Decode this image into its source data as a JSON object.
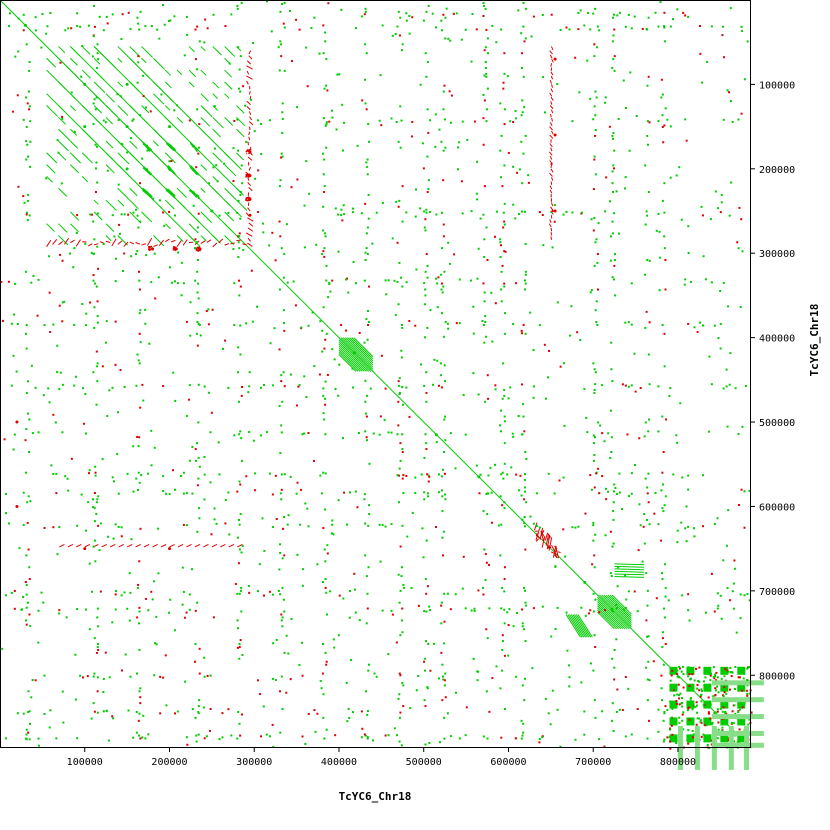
{
  "chart_data": {
    "type": "scatter",
    "plot_kind": "dot plot (self-alignment)",
    "xlabel": "TcYC6_Chr18",
    "ylabel": "TcYC6_Chr18",
    "xlim": [
      0,
      885000
    ],
    "ylim": [
      0,
      885000
    ],
    "y_inverted": true,
    "x_ticks": [
      100000,
      200000,
      300000,
      400000,
      500000,
      600000,
      700000,
      800000
    ],
    "x_tick_labels": [
      "100000",
      "200000",
      "300000",
      "400000",
      "500000",
      "600000",
      "700000",
      "800000"
    ],
    "y_ticks": [
      100000,
      200000,
      300000,
      400000,
      500000,
      600000,
      700000,
      800000
    ],
    "y_tick_labels": [
      "100000",
      "200000",
      "300000",
      "400000",
      "500000",
      "600000",
      "700000",
      "800000"
    ],
    "grid": false,
    "colors": {
      "forward": "#00cc00",
      "reverse": "#dd0000",
      "frame": "#000000"
    },
    "main_diagonal": [
      [
        0,
        0
      ],
      [
        885000,
        885000
      ]
    ],
    "series": [
      {
        "name": "",
        "color": "#00cc00",
        "points": [
          [
            30000,
            30000
          ],
          [
            100000,
            100000
          ],
          [
            150000,
            150000
          ],
          [
            200000,
            200000
          ],
          [
            250000,
            250000
          ],
          [
            173000,
            173000
          ],
          [
            201000,
            201000
          ],
          [
            228000,
            228000
          ],
          [
            173000,
            201000
          ],
          [
            201000,
            173000
          ],
          [
            228000,
            173000
          ],
          [
            173000,
            228000
          ],
          [
            201000,
            228000
          ],
          [
            228000,
            201000
          ],
          [
            418000,
            418000
          ],
          [
            515000,
            515000
          ],
          [
            565000,
            565000
          ],
          [
            690000,
            690000
          ],
          [
            722000,
            722000
          ],
          [
            150000,
            100000
          ],
          [
            200000,
            150000
          ],
          [
            100000,
            150000
          ],
          [
            150000,
            200000
          ]
        ]
      },
      {
        "name": "",
        "color": "#dd0000",
        "points": [
          [
            295000,
            180000
          ],
          [
            295000,
            208000
          ],
          [
            295000,
            236000
          ],
          [
            295000,
            255000
          ],
          [
            180000,
            295000
          ],
          [
            208000,
            295000
          ],
          [
            236000,
            295000
          ],
          [
            648000,
            648000
          ],
          [
            655000,
            70000
          ],
          [
            655000,
            160000
          ],
          [
            655000,
            250000
          ],
          [
            100000,
            650000
          ],
          [
            200000,
            650000
          ],
          [
            20000,
            500000
          ],
          [
            20000,
            600000
          ]
        ]
      }
    ]
  }
}
